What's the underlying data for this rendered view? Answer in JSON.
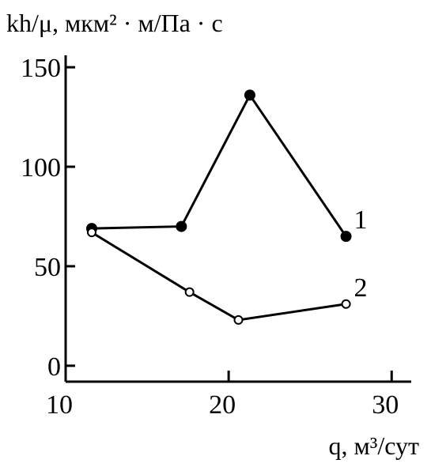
{
  "chart_data": {
    "type": "line",
    "title": "kh/μ, мкм² · м/Па · с",
    "x_label": "q, м³/сут",
    "xlim": [
      10,
      31.2
    ],
    "xticks": [
      10,
      20,
      30
    ],
    "ylim": [
      -8,
      156
    ],
    "yticks": [
      0,
      50,
      100,
      150
    ],
    "series": [
      {
        "name": "1",
        "color": "#000000",
        "marker": "filled",
        "x": [
          11.6,
          17.1,
          21.3,
          27.2
        ],
        "values": [
          69,
          70,
          136,
          65
        ]
      },
      {
        "name": "2",
        "color": "#000000",
        "marker": "open",
        "x": [
          11.6,
          17.6,
          20.6,
          27.2
        ],
        "values": [
          67,
          37,
          23,
          31
        ]
      }
    ]
  }
}
